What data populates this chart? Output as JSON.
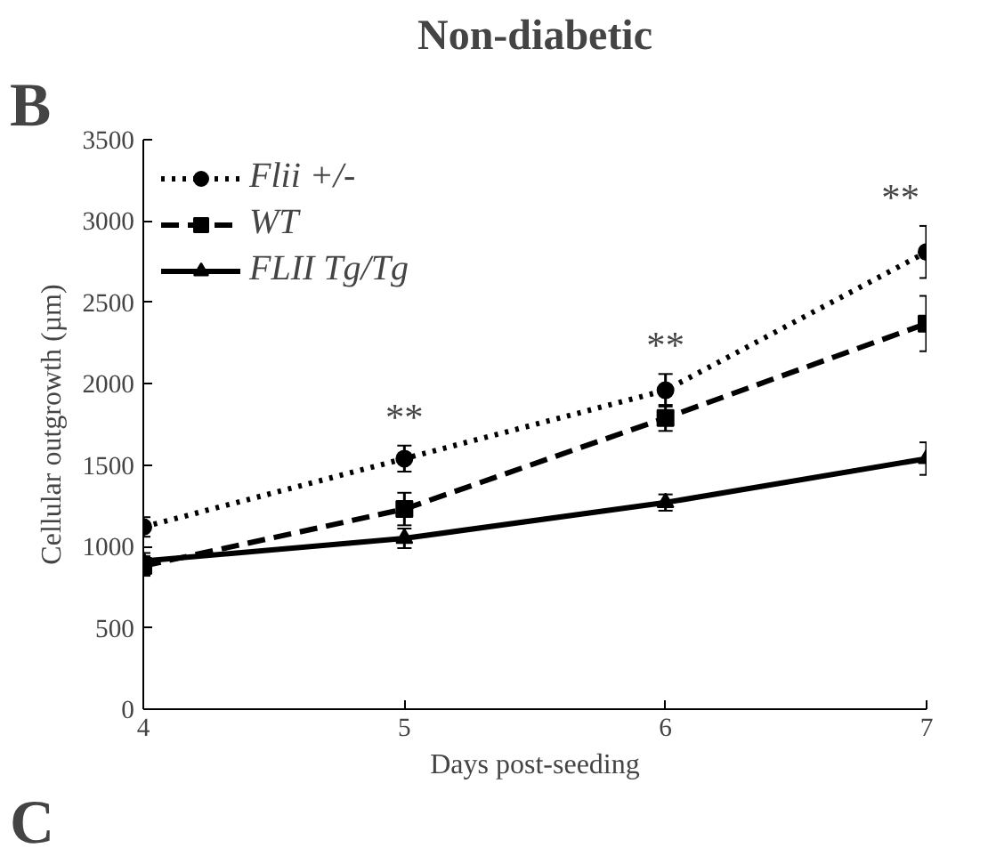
{
  "chart_data": {
    "type": "line",
    "title": "Non-diabetic",
    "xlabel": "Days post-seeding",
    "ylabel": "Cellular outgrowth (µm)",
    "x": [
      4,
      5,
      6,
      7
    ],
    "series": [
      {
        "name": "Flii +/-",
        "color": "#000000",
        "values": [
          1120,
          1540,
          1960,
          2810
        ],
        "errors": [
          60,
          80,
          100,
          160
        ],
        "marker": "circle",
        "line_style": "dotted"
      },
      {
        "name": "WT",
        "color": "#000000",
        "values": [
          880,
          1230,
          1790,
          2370
        ],
        "errors": [
          60,
          100,
          80,
          170
        ],
        "marker": "square",
        "line_style": "dashed"
      },
      {
        "name": "FLII Tg/Tg",
        "color": "#000000",
        "values": [
          910,
          1050,
          1270,
          1540
        ],
        "errors": [
          50,
          60,
          50,
          100
        ],
        "marker": "triangle",
        "line_style": "solid"
      }
    ],
    "xlim": [
      4,
      7
    ],
    "xticks": [
      4,
      5,
      6,
      7
    ],
    "ylim": [
      0,
      3500
    ],
    "yticks": [
      0,
      500,
      1000,
      1500,
      2000,
      2500,
      3000,
      3500
    ],
    "grid": false,
    "legend": "top left",
    "annotations": [
      "B",
      "C",
      "**",
      "**",
      "**"
    ]
  }
}
